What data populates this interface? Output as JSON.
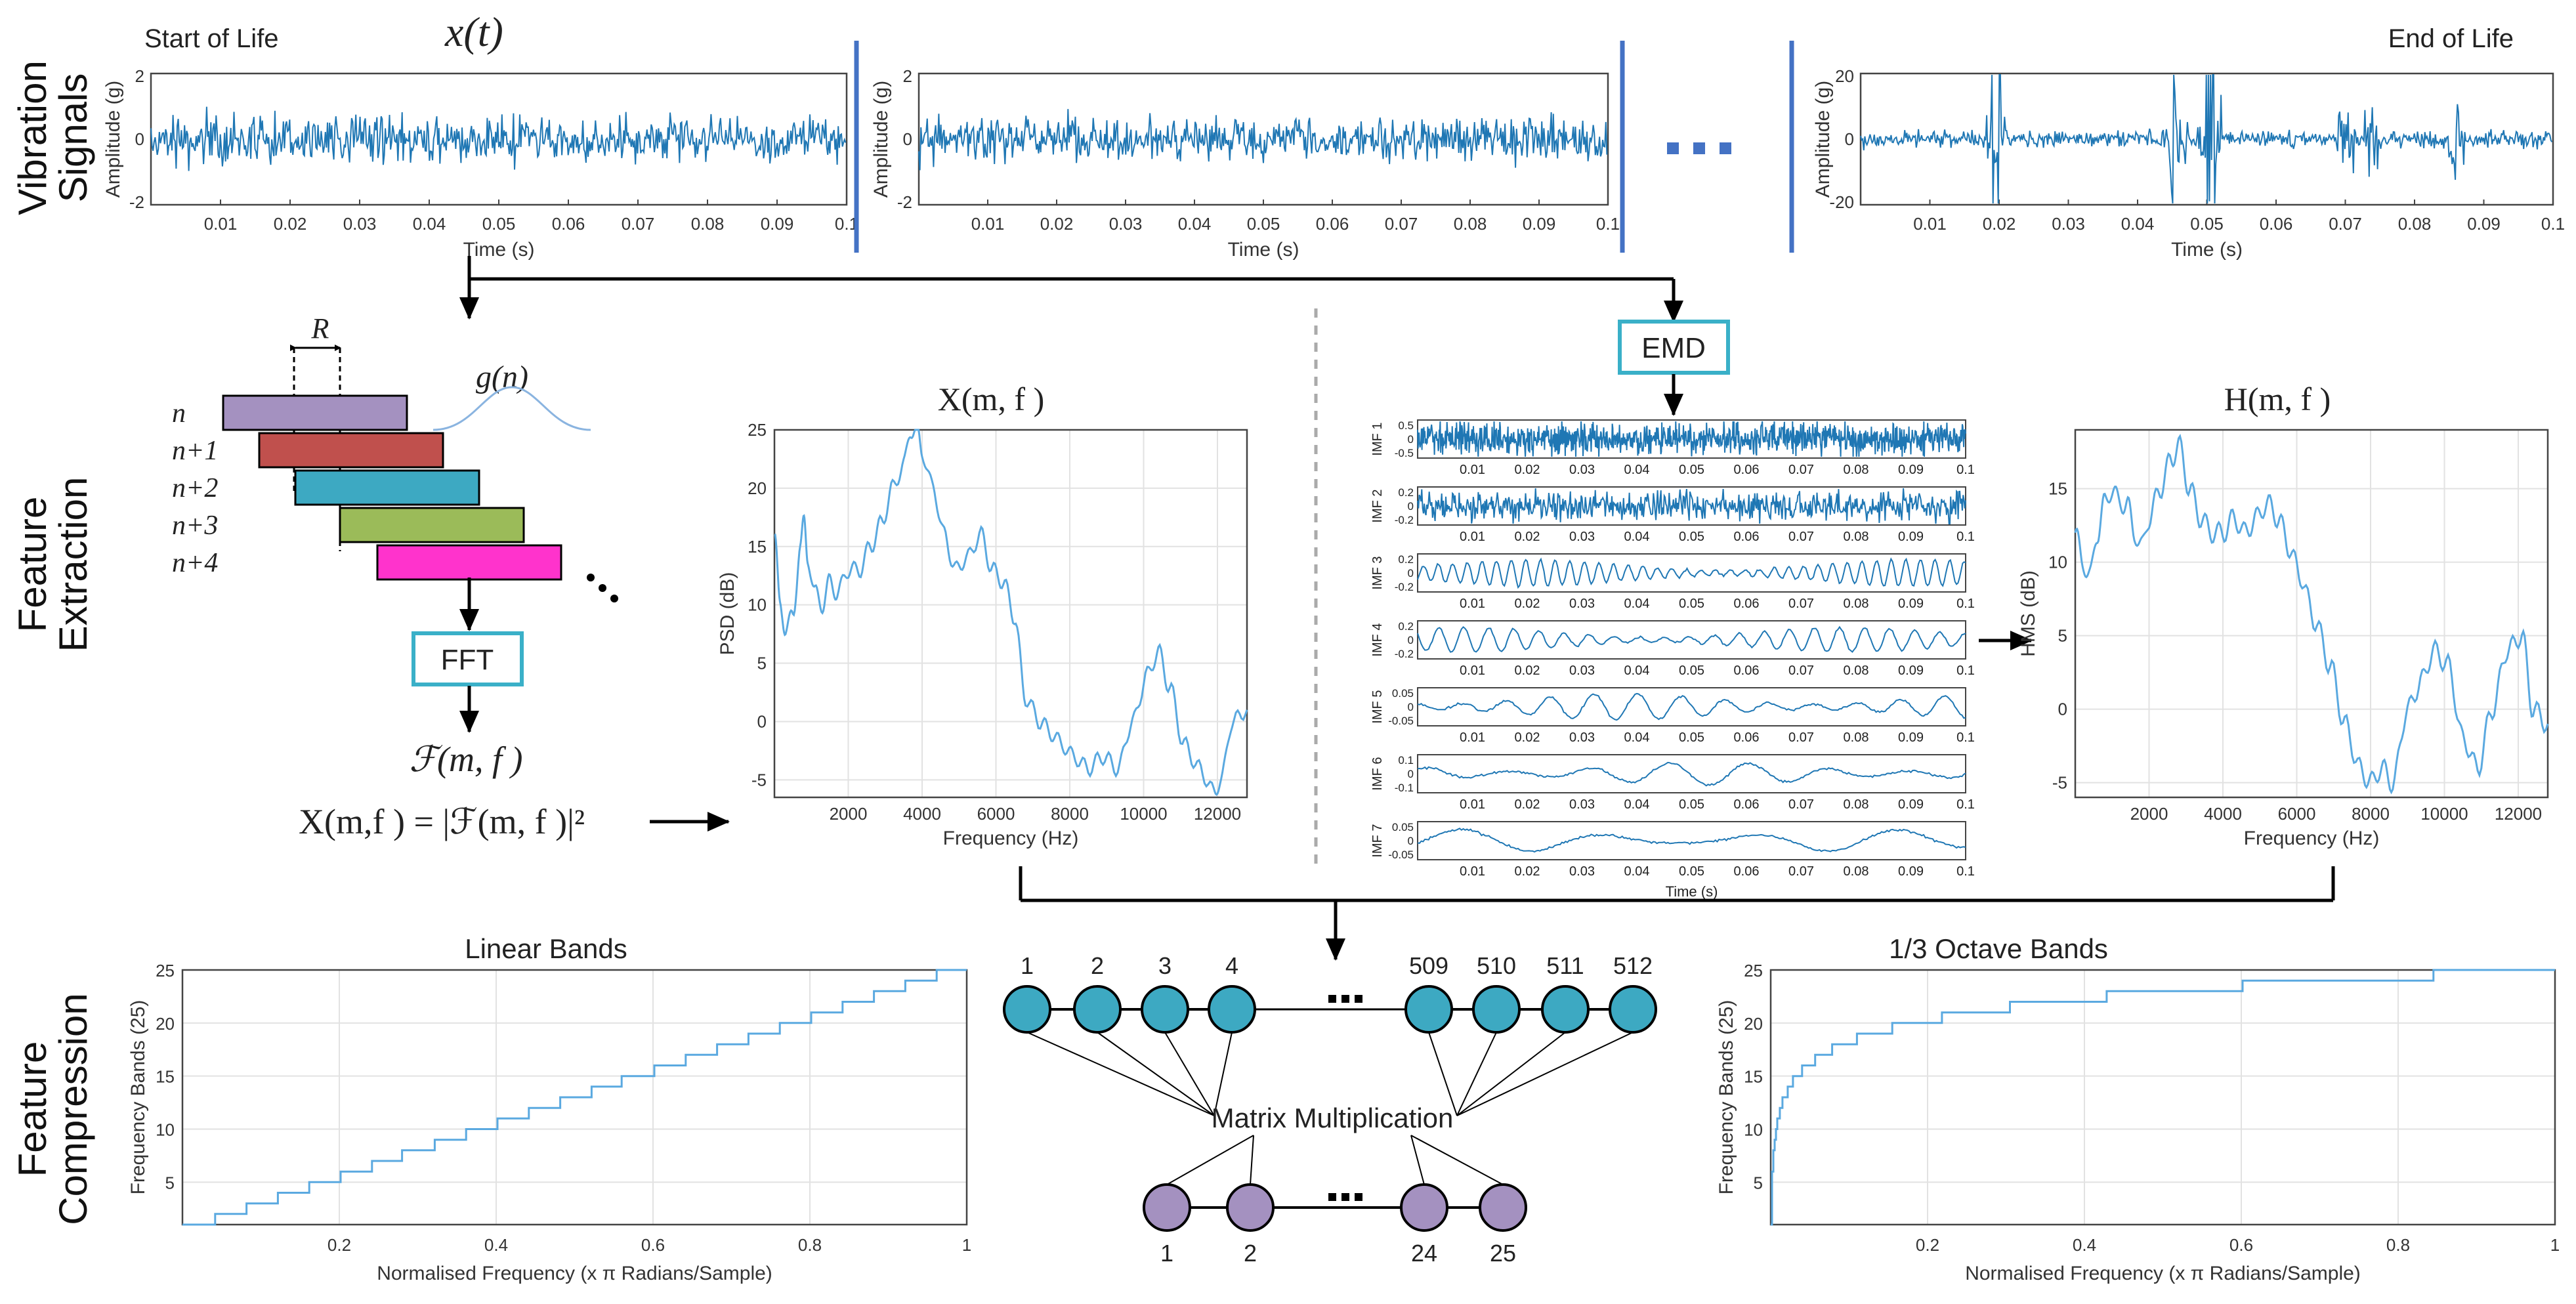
{
  "sections": {
    "row1": [
      "Vibration",
      "Signals"
    ],
    "row2": [
      "Feature",
      "Extraction"
    ],
    "row3": [
      "Feature",
      "Compression"
    ]
  },
  "signals": {
    "start_label": "Start of Life",
    "end_label": "End of Life",
    "math_label": "x(t)",
    "ylabel": "Amplitude (g)",
    "xlabel": "Time (s)",
    "xticks": [
      "0.01",
      "0.02",
      "0.03",
      "0.04",
      "0.05",
      "0.06",
      "0.07",
      "0.08",
      "0.09",
      "0.1"
    ],
    "plot1_yticks": [
      "2",
      "0",
      "-2"
    ],
    "plot2_yticks": [
      "2",
      "0",
      "-2"
    ],
    "plot3_yticks": [
      "20",
      "0",
      "-20"
    ],
    "ellipsis": "..."
  },
  "stft": {
    "window_label": "R",
    "window_func": "g(n)",
    "rows": [
      "n",
      "n+1",
      "n+2",
      "n+3",
      "n+4"
    ],
    "colors": [
      "#a491c0",
      "#c0504d",
      "#3da9c2",
      "#9bbb59",
      "#ff33cc"
    ],
    "fft_label": "FFT",
    "fourier_label": "ℱ(m, f )",
    "psd_formula": "X(m,f ) = |ℱ(m, f )|²"
  },
  "psd_chart": {
    "title": "X(m, f )",
    "ylabel": "PSD (dB)",
    "xlabel": "Frequency (Hz)",
    "xticks": [
      "2000",
      "4000",
      "6000",
      "8000",
      "10000",
      "12000"
    ],
    "yticks": [
      "25",
      "20",
      "15",
      "10",
      "5",
      "0",
      "-5"
    ]
  },
  "emd": {
    "label": "EMD",
    "imfs": [
      {
        "name": "IMF 1",
        "ticks": [
          "0.5",
          "0",
          "-0.5"
        ]
      },
      {
        "name": "IMF 2",
        "ticks": [
          "0.2",
          "0",
          "-0.2"
        ]
      },
      {
        "name": "IMF 3",
        "ticks": [
          "0.2",
          "0",
          "-0.2"
        ]
      },
      {
        "name": "IMF 4",
        "ticks": [
          "0.2",
          "0",
          "-0.2"
        ]
      },
      {
        "name": "IMF 5",
        "ticks": [
          "0.05",
          "0",
          "-0.05"
        ]
      },
      {
        "name": "IMF 6",
        "ticks": [
          "0.1",
          "0",
          "-0.1"
        ]
      },
      {
        "name": "IMF 7",
        "ticks": [
          "0.05",
          "0",
          "-0.05"
        ]
      }
    ],
    "xticks": [
      "0.01",
      "0.02",
      "0.03",
      "0.04",
      "0.05",
      "0.06",
      "0.07",
      "0.08",
      "0.09",
      "0.1"
    ],
    "xlabel": "Time (s)"
  },
  "hms_chart": {
    "title": "H(m, f )",
    "ylabel": "HMS (dB)",
    "xlabel": "Frequency (Hz)",
    "xticks": [
      "2000",
      "4000",
      "6000",
      "8000",
      "10000",
      "12000"
    ],
    "yticks": [
      "15",
      "10",
      "5",
      "0",
      "-5"
    ]
  },
  "linear_bands": {
    "title": "Linear Bands",
    "ylabel": "Frequency Bands (25)",
    "xlabel": "Normalised Frequency (x π Radians/Sample)",
    "xticks": [
      "0.2",
      "0.4",
      "0.6",
      "0.8",
      "1"
    ],
    "yticks": [
      "25",
      "20",
      "15",
      "10",
      "5"
    ]
  },
  "octave_bands": {
    "title": "1/3 Octave Bands",
    "ylabel": "Frequency Bands (25)",
    "xlabel": "Normalised Frequency (x π Radians/Sample)",
    "xticks": [
      "0.2",
      "0.4",
      "0.6",
      "0.8",
      "1"
    ],
    "yticks": [
      "25",
      "20",
      "15",
      "10",
      "5"
    ]
  },
  "network": {
    "top_labels": [
      "1",
      "2",
      "3",
      "4",
      "509",
      "510",
      "511",
      "512"
    ],
    "bottom_labels": [
      "1",
      "2",
      "24",
      "25"
    ],
    "ellipsis": "...",
    "center_label": "Matrix Multiplication"
  }
}
